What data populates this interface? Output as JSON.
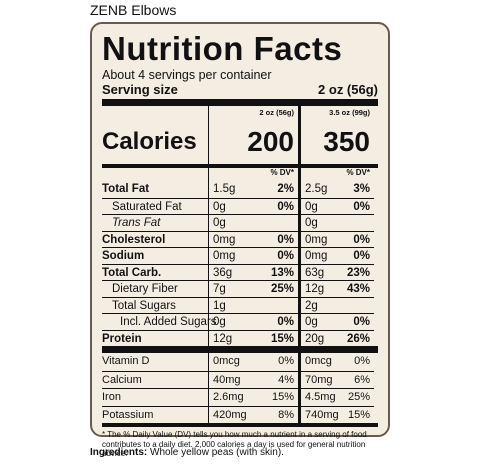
{
  "product_title": "ZENB Elbows",
  "label": {
    "title": "Nutrition Facts",
    "servings": "About 4 servings per container",
    "serving_size_label": "Serving size",
    "serving_size_value": "2 oz (56g)",
    "col1_amount": "2 oz (56g)",
    "col2_amount": "3.5 oz (99g)",
    "calories_label": "Calories",
    "calories_1": "200",
    "calories_2": "350",
    "dv_header": "% DV*"
  },
  "nutrients": [
    {
      "name": "Total Fat",
      "amt1": "1.5g",
      "dv1": "2%",
      "amt2": "2.5g",
      "dv2": "3%"
    },
    {
      "name": "Saturated Fat",
      "amt1": "0g",
      "dv1": "0%",
      "amt2": "0g",
      "dv2": "0%"
    },
    {
      "name": "Trans Fat",
      "amt1": "0g",
      "dv1": "",
      "amt2": "0g",
      "dv2": ""
    },
    {
      "name": "Cholesterol",
      "amt1": "0mg",
      "dv1": "0%",
      "amt2": "0mg",
      "dv2": "0%"
    },
    {
      "name": "Sodium",
      "amt1": "0mg",
      "dv1": "0%",
      "amt2": "0mg",
      "dv2": "0%"
    },
    {
      "name": "Total Carb.",
      "amt1": "36g",
      "dv1": "13%",
      "amt2": "63g",
      "dv2": "23%"
    },
    {
      "name": "Dietary Fiber",
      "amt1": "7g",
      "dv1": "25%",
      "amt2": "12g",
      "dv2": "43%"
    },
    {
      "name": "Total Sugars",
      "amt1": "1g",
      "dv1": "",
      "amt2": "2g",
      "dv2": ""
    },
    {
      "name": "Incl. Added Sugars",
      "amt1": "0g",
      "dv1": "0%",
      "amt2": "0g",
      "dv2": "0%"
    },
    {
      "name": "Protein",
      "amt1": "12g",
      "dv1": "15%",
      "amt2": "20g",
      "dv2": "26%"
    }
  ],
  "minerals": [
    {
      "name": "Vitamin D",
      "amt1": "0mcg",
      "dv1": "0%",
      "amt2": "0mcg",
      "dv2": "0%"
    },
    {
      "name": "Calcium",
      "amt1": "40mg",
      "dv1": "4%",
      "amt2": "70mg",
      "dv2": "6%"
    },
    {
      "name": "Iron",
      "amt1": "2.6mg",
      "dv1": "15%",
      "amt2": "4.5mg",
      "dv2": "25%"
    },
    {
      "name": "Potassium",
      "amt1": "420mg",
      "dv1": "8%",
      "amt2": "740mg",
      "dv2": "15%"
    }
  ],
  "footnote": "* The % Daily Value (DV) tells you how much a nutrient in a serving of food contributes to a daily diet. 2,000 calories a day is used for general nutrition advice.",
  "ingredients": {
    "label": "Ingredients:",
    "text": "Whole yellow peas (with skin)."
  }
}
